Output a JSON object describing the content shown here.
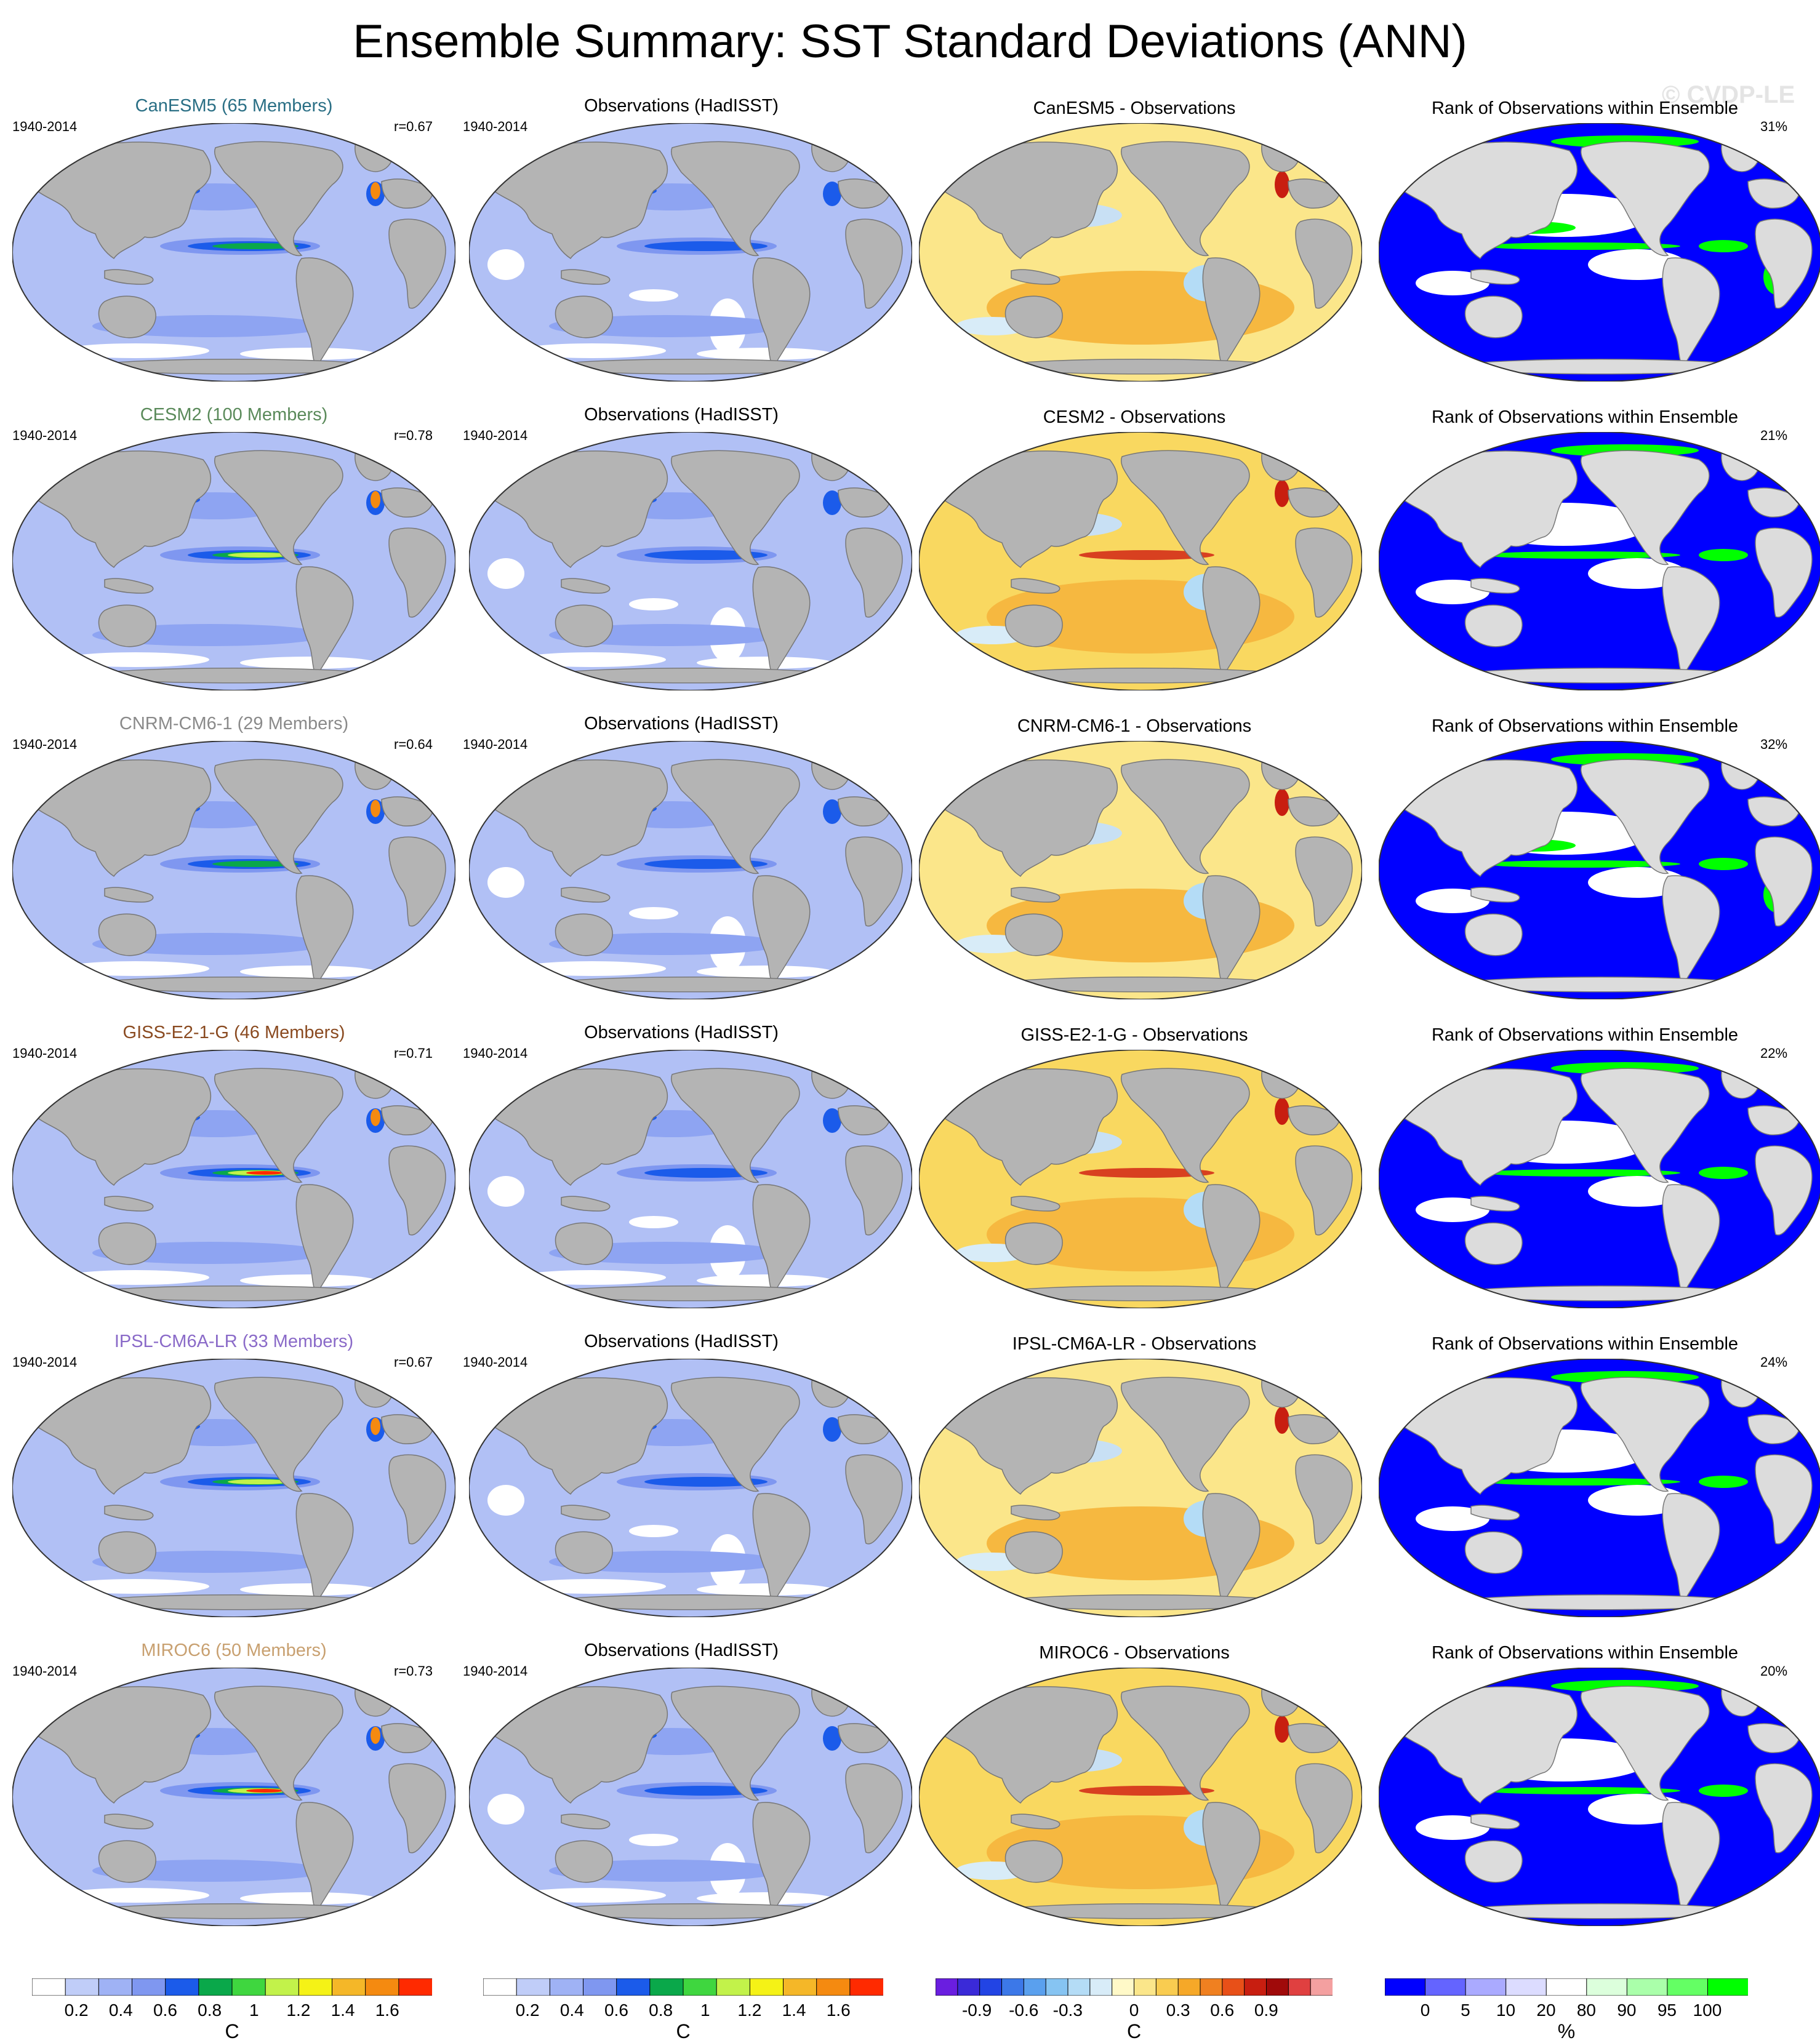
{
  "title": "Ensemble Summary: SST Standard Deviations (ANN)",
  "watermark": "© CVDP-LE",
  "period": "1940-2014",
  "obs_title": "Observations (HadISST)",
  "rank_title": "Rank of Observations within Ensemble",
  "rows": [
    {
      "model": "CanESM5 (65 Members)",
      "model_color": "#2a6f85",
      "r": "r=0.67",
      "diff_title": "CanESM5 - Observations",
      "rank_pct": "31%",
      "bias": "mixed",
      "rank_style": "lowgreen"
    },
    {
      "model": "CESM2 (100 Members)",
      "model_color": "#5a8a5a",
      "r": "r=0.78",
      "diff_title": "CESM2 - Observations",
      "rank_pct": "21%",
      "bias": "warm",
      "rank_style": "low"
    },
    {
      "model": "CNRM-CM6-1 (29 Members)",
      "model_color": "#8a8a8a",
      "r": "r=0.64",
      "diff_title": "CNRM-CM6-1 - Observations",
      "rank_pct": "32%",
      "bias": "mixed",
      "rank_style": "lowgreen"
    },
    {
      "model": "GISS-E2-1-G (46 Members)",
      "model_color": "#8a4a20",
      "r": "r=0.71",
      "diff_title": "GISS-E2-1-G - Observations",
      "rank_pct": "22%",
      "bias": "warm",
      "rank_style": "low"
    },
    {
      "model": "IPSL-CM6A-LR (33 Members)",
      "model_color": "#8a6ac8",
      "r": "r=0.67",
      "diff_title": "IPSL-CM6A-LR - Observations",
      "rank_pct": "24%",
      "bias": "mixed",
      "rank_style": "low"
    },
    {
      "model": "MIROC6 (50 Members)",
      "model_color": "#c8a070",
      "r": "r=0.73",
      "diff_title": "MIROC6 - Observations",
      "rank_pct": "20%",
      "bias": "warm",
      "rank_style": "low"
    }
  ],
  "colorbars": [
    {
      "unit": "C",
      "ticks": [
        "0.2",
        "0.4",
        "0.6",
        "0.8",
        "1",
        "1.2",
        "1.4",
        "1.6"
      ],
      "colors": [
        "#ffffff",
        "#c0cdf8",
        "#9fb2f5",
        "#7f97f0",
        "#1b5bea",
        "#0aa84a",
        "#3fd63f",
        "#c2f24a",
        "#f5f216",
        "#f5b728",
        "#f58a10",
        "#ff2a00"
      ]
    },
    {
      "unit": "C",
      "ticks": [
        "0.2",
        "0.4",
        "0.6",
        "0.8",
        "1",
        "1.2",
        "1.4",
        "1.6"
      ],
      "colors": [
        "#ffffff",
        "#c0cdf8",
        "#9fb2f5",
        "#7f97f0",
        "#1b5bea",
        "#0aa84a",
        "#3fd63f",
        "#c2f24a",
        "#f5f216",
        "#f5b728",
        "#f58a10",
        "#ff2a00"
      ]
    },
    {
      "unit": "C",
      "ticks": [
        "-0.9",
        "-0.6",
        "-0.3",
        "0",
        "0.3",
        "0.6",
        "0.9"
      ],
      "colors": [
        "#6a1ee0",
        "#3a2ad8",
        "#2244e4",
        "#3c78e8",
        "#5aa0ee",
        "#86c4f2",
        "#b4dcf6",
        "#d8ecf8",
        "#fff9c8",
        "#fbe68a",
        "#f9cc50",
        "#f6a828",
        "#f08020",
        "#e85018",
        "#c81e10",
        "#a00a0a",
        "#e04040",
        "#f4a0a0"
      ]
    },
    {
      "unit": "%",
      "ticks": [
        "0",
        "5",
        "10",
        "20",
        "80",
        "90",
        "95",
        "100"
      ],
      "colors": [
        "#0000ff",
        "#6464ff",
        "#aaaaff",
        "#dcdcff",
        "#ffffff",
        "#dcffdc",
        "#aaffaa",
        "#64ff64",
        "#00ff00"
      ]
    }
  ]
}
